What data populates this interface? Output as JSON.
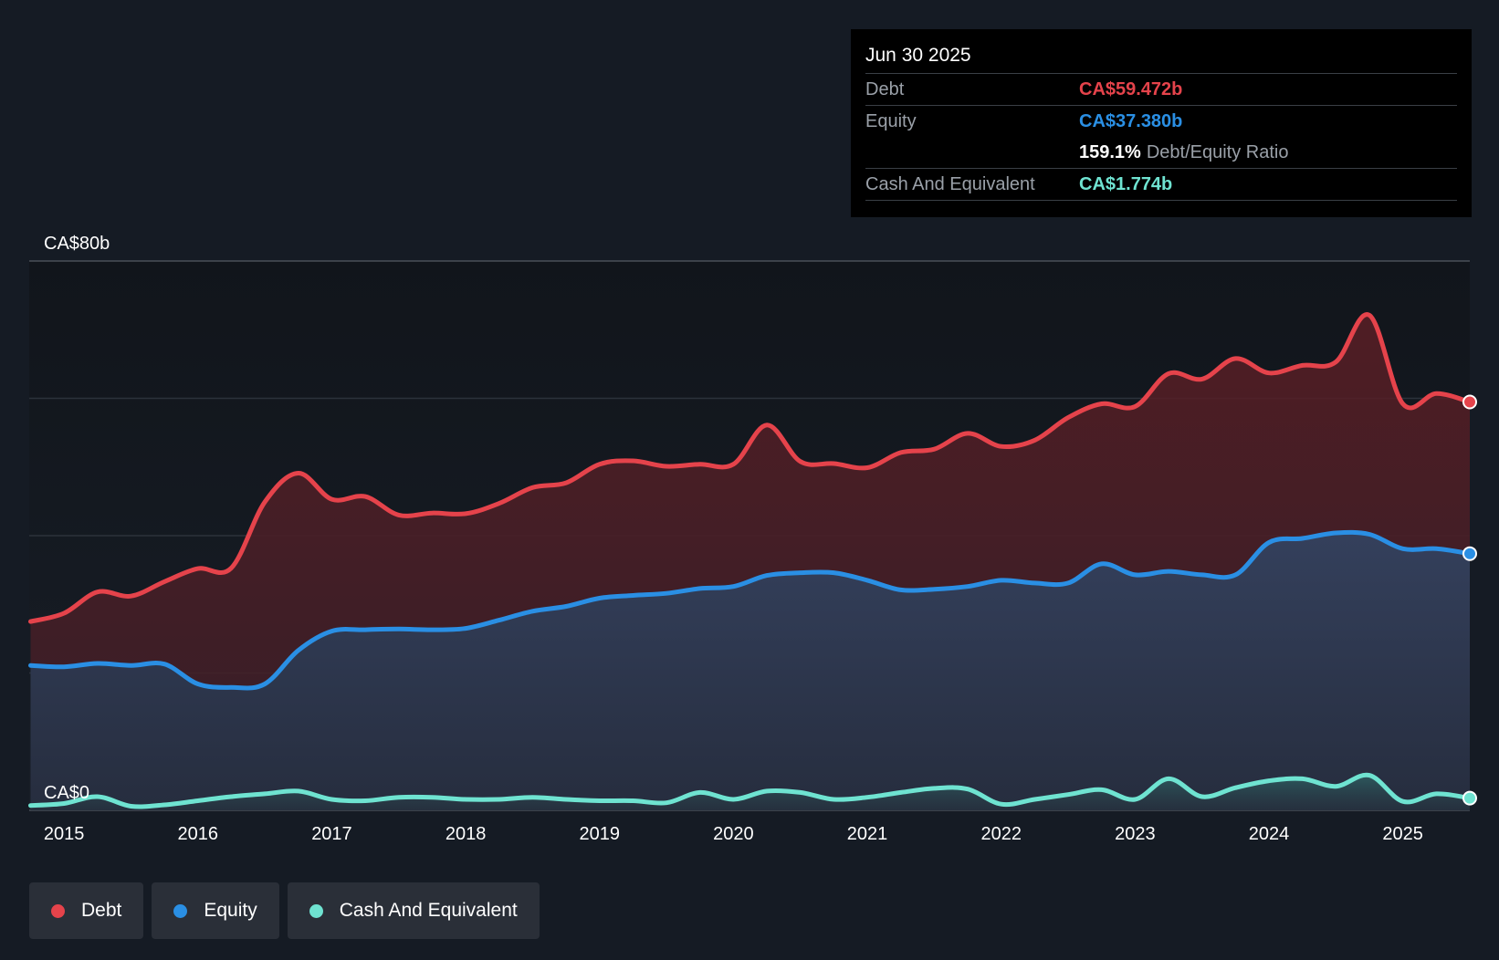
{
  "tooltip": {
    "date": "Jun 30 2025",
    "debt_label": "Debt",
    "debt_value": "CA$59.472b",
    "equity_label": "Equity",
    "equity_value": "CA$37.380b",
    "ratio_value": "159.1%",
    "ratio_label": "Debt/Equity Ratio",
    "cash_label": "Cash And Equivalent",
    "cash_value": "CA$1.774b"
  },
  "legend": [
    {
      "label": "Debt",
      "color": "#e5434b"
    },
    {
      "label": "Equity",
      "color": "#2a8fe4"
    },
    {
      "label": "Cash And Equivalent",
      "color": "#6fe3d1"
    }
  ],
  "chart_data": {
    "type": "area",
    "title": "",
    "xlabel": "",
    "ylabel": "",
    "ylim": [
      0,
      80
    ],
    "y_tick_labels": [
      {
        "value": 80,
        "label": "CA$80b"
      },
      {
        "value": 0,
        "label": "CA$0"
      }
    ],
    "gridlines_y": [
      0,
      20,
      40,
      60,
      80
    ],
    "x_tick_labels": [
      {
        "x": 2015,
        "label": "2015"
      },
      {
        "x": 2016,
        "label": "2016"
      },
      {
        "x": 2017,
        "label": "2017"
      },
      {
        "x": 2018,
        "label": "2018"
      },
      {
        "x": 2019,
        "label": "2019"
      },
      {
        "x": 2020,
        "label": "2020"
      },
      {
        "x": 2021,
        "label": "2021"
      },
      {
        "x": 2022,
        "label": "2022"
      },
      {
        "x": 2023,
        "label": "2023"
      },
      {
        "x": 2024,
        "label": "2024"
      },
      {
        "x": 2025,
        "label": "2025"
      }
    ],
    "xlim": [
      2014.74,
      2025.5
    ],
    "series": [
      {
        "name": "Debt",
        "color": "#e5434b",
        "points": [
          [
            2014.75,
            27.5
          ],
          [
            2015.0,
            28.7
          ],
          [
            2015.25,
            31.8
          ],
          [
            2015.5,
            31.2
          ],
          [
            2015.75,
            33.3
          ],
          [
            2016.0,
            35.2
          ],
          [
            2016.25,
            35.3
          ],
          [
            2016.5,
            44.9
          ],
          [
            2016.75,
            49.1
          ],
          [
            2017.0,
            45.3
          ],
          [
            2017.25,
            45.7
          ],
          [
            2017.5,
            43.0
          ],
          [
            2017.75,
            43.3
          ],
          [
            2018.0,
            43.2
          ],
          [
            2018.25,
            44.7
          ],
          [
            2018.5,
            47.0
          ],
          [
            2018.75,
            47.7
          ],
          [
            2019.0,
            50.4
          ],
          [
            2019.25,
            50.9
          ],
          [
            2019.5,
            50.1
          ],
          [
            2019.75,
            50.4
          ],
          [
            2020.0,
            50.4
          ],
          [
            2020.25,
            56.1
          ],
          [
            2020.5,
            50.8
          ],
          [
            2020.75,
            50.5
          ],
          [
            2021.0,
            49.9
          ],
          [
            2021.25,
            52.1
          ],
          [
            2021.5,
            52.6
          ],
          [
            2021.75,
            54.9
          ],
          [
            2022.0,
            53.0
          ],
          [
            2022.25,
            53.9
          ],
          [
            2022.5,
            57.2
          ],
          [
            2022.75,
            59.2
          ],
          [
            2023.0,
            58.8
          ],
          [
            2023.25,
            63.6
          ],
          [
            2023.5,
            62.8
          ],
          [
            2023.75,
            65.8
          ],
          [
            2024.0,
            63.7
          ],
          [
            2024.25,
            64.8
          ],
          [
            2024.5,
            65.3
          ],
          [
            2024.75,
            72.1
          ],
          [
            2025.0,
            59.2
          ],
          [
            2025.25,
            60.7
          ],
          [
            2025.5,
            59.472
          ]
        ]
      },
      {
        "name": "Equity",
        "color": "#2a8fe4",
        "points": [
          [
            2014.75,
            21.1
          ],
          [
            2015.0,
            20.9
          ],
          [
            2015.25,
            21.4
          ],
          [
            2015.5,
            21.1
          ],
          [
            2015.75,
            21.3
          ],
          [
            2016.0,
            18.4
          ],
          [
            2016.25,
            17.9
          ],
          [
            2016.5,
            18.4
          ],
          [
            2016.75,
            23.3
          ],
          [
            2017.0,
            26.1
          ],
          [
            2017.25,
            26.3
          ],
          [
            2017.5,
            26.4
          ],
          [
            2017.75,
            26.3
          ],
          [
            2018.0,
            26.5
          ],
          [
            2018.25,
            27.7
          ],
          [
            2018.5,
            29.0
          ],
          [
            2018.75,
            29.7
          ],
          [
            2019.0,
            30.9
          ],
          [
            2019.25,
            31.3
          ],
          [
            2019.5,
            31.6
          ],
          [
            2019.75,
            32.3
          ],
          [
            2020.0,
            32.6
          ],
          [
            2020.25,
            34.2
          ],
          [
            2020.5,
            34.6
          ],
          [
            2020.75,
            34.6
          ],
          [
            2021.0,
            33.5
          ],
          [
            2021.25,
            32.1
          ],
          [
            2021.5,
            32.2
          ],
          [
            2021.75,
            32.6
          ],
          [
            2022.0,
            33.5
          ],
          [
            2022.25,
            33.1
          ],
          [
            2022.5,
            33.1
          ],
          [
            2022.75,
            35.9
          ],
          [
            2023.0,
            34.3
          ],
          [
            2023.25,
            34.8
          ],
          [
            2023.5,
            34.3
          ],
          [
            2023.75,
            34.3
          ],
          [
            2024.0,
            39.0
          ],
          [
            2024.25,
            39.6
          ],
          [
            2024.5,
            40.4
          ],
          [
            2024.75,
            40.2
          ],
          [
            2025.0,
            38.1
          ],
          [
            2025.25,
            38.1
          ],
          [
            2025.5,
            37.38
          ]
        ]
      },
      {
        "name": "Cash And Equivalent",
        "color": "#6fe3d1",
        "points": [
          [
            2014.75,
            0.7
          ],
          [
            2015.0,
            1.0
          ],
          [
            2015.25,
            2.0
          ],
          [
            2015.5,
            0.6
          ],
          [
            2015.75,
            0.8
          ],
          [
            2016.0,
            1.4
          ],
          [
            2016.25,
            2.0
          ],
          [
            2016.5,
            2.4
          ],
          [
            2016.75,
            2.8
          ],
          [
            2017.0,
            1.6
          ],
          [
            2017.25,
            1.4
          ],
          [
            2017.5,
            1.9
          ],
          [
            2017.75,
            1.9
          ],
          [
            2018.0,
            1.6
          ],
          [
            2018.25,
            1.6
          ],
          [
            2018.5,
            1.9
          ],
          [
            2018.75,
            1.6
          ],
          [
            2019.0,
            1.4
          ],
          [
            2019.25,
            1.4
          ],
          [
            2019.5,
            1.1
          ],
          [
            2019.75,
            2.6
          ],
          [
            2020.0,
            1.6
          ],
          [
            2020.25,
            2.8
          ],
          [
            2020.5,
            2.6
          ],
          [
            2020.75,
            1.6
          ],
          [
            2021.0,
            1.9
          ],
          [
            2021.25,
            2.6
          ],
          [
            2021.5,
            3.2
          ],
          [
            2021.75,
            3.1
          ],
          [
            2022.0,
            0.9
          ],
          [
            2022.25,
            1.6
          ],
          [
            2022.5,
            2.3
          ],
          [
            2022.75,
            3.0
          ],
          [
            2023.0,
            1.6
          ],
          [
            2023.25,
            4.6
          ],
          [
            2023.5,
            2.0
          ],
          [
            2023.75,
            3.3
          ],
          [
            2024.0,
            4.3
          ],
          [
            2024.25,
            4.6
          ],
          [
            2024.5,
            3.5
          ],
          [
            2024.75,
            5.1
          ],
          [
            2025.0,
            1.3
          ],
          [
            2025.25,
            2.4
          ],
          [
            2025.5,
            1.774
          ]
        ]
      }
    ]
  }
}
